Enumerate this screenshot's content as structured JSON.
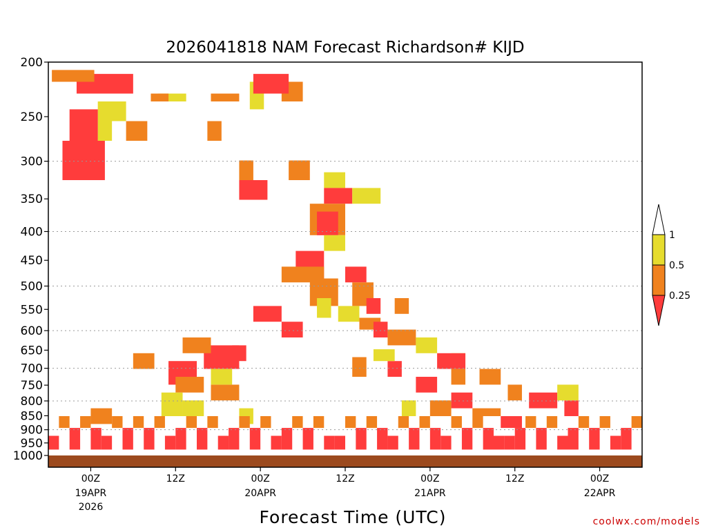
{
  "chart_data": {
    "type": "heatmap",
    "title": "2026041818 NAM Forecast Richardson# KIJD",
    "xlabel": "Forecast Time (UTC)",
    "ylabel": "",
    "y_scale": "log",
    "ylim": [
      1000,
      200
    ],
    "yticks": [
      200,
      250,
      300,
      350,
      400,
      450,
      500,
      550,
      600,
      650,
      700,
      750,
      800,
      850,
      900,
      950,
      1000
    ],
    "gridlines_at": [
      300,
      400,
      500,
      600,
      700,
      800,
      900
    ],
    "xticks": [
      {
        "hour": 6,
        "label": "00Z",
        "date": "19APR",
        "year": "2026"
      },
      {
        "hour": 18,
        "label": "12Z",
        "date": "",
        "year": ""
      },
      {
        "hour": 30,
        "label": "00Z",
        "date": "20APR",
        "year": ""
      },
      {
        "hour": 42,
        "label": "12Z",
        "date": "",
        "year": ""
      },
      {
        "hour": 54,
        "label": "00Z",
        "date": "21APR",
        "year": ""
      },
      {
        "hour": 66,
        "label": "12Z",
        "date": "",
        "year": ""
      },
      {
        "hour": 78,
        "label": "00Z",
        "date": "22APR",
        "year": ""
      }
    ],
    "xlim_hours": [
      0,
      84
    ],
    "legend": {
      "labels": [
        "1",
        "0.5",
        "0.25"
      ],
      "colors": [
        "#ffffff",
        "#e6dc2e",
        "#f0821e",
        "#ff3c3c"
      ],
      "placement": "right"
    },
    "ground_color": "#9c4a1e",
    "cells": [
      [
        0,
        17.5,
        3,
        0.02,
        0.1
      ],
      [
        1,
        15.5,
        4,
        0.08,
        0.1
      ],
      [
        1,
        7,
        2,
        0.1,
        0.2
      ],
      [
        2,
        14.5,
        2.5,
        0.08,
        0.1
      ],
      [
        2,
        11,
        3,
        0.15,
        0.2
      ],
      [
        2,
        22.5,
        2,
        0.15,
        0.2
      ],
      [
        2,
        23,
        4,
        0.08,
        0.1
      ],
      [
        1,
        28.5,
        2,
        0.05,
        0.12
      ],
      [
        2,
        33,
        3,
        0.05,
        0.1
      ],
      [
        3,
        29,
        5,
        0.03,
        0.08
      ],
      [
        3,
        4,
        8,
        0.03,
        0.08
      ],
      [
        2,
        0.5,
        6,
        0.02,
        0.05
      ],
      [
        1,
        8,
        3,
        0.1,
        0.15
      ],
      [
        3,
        3,
        4,
        0.12,
        0.25
      ],
      [
        3,
        2,
        6,
        0.2,
        0.3
      ],
      [
        2,
        27,
        2,
        0.25,
        0.3
      ],
      [
        2,
        34,
        3,
        0.25,
        0.3
      ],
      [
        3,
        27,
        4,
        0.3,
        0.35
      ],
      [
        1,
        39,
        3,
        0.28,
        0.32
      ],
      [
        3,
        39,
        4,
        0.32,
        0.36
      ],
      [
        1,
        43,
        4,
        0.32,
        0.36
      ],
      [
        2,
        37,
        5,
        0.36,
        0.44
      ],
      [
        3,
        38,
        3,
        0.38,
        0.44
      ],
      [
        1,
        39,
        3,
        0.44,
        0.48
      ],
      [
        3,
        35,
        4,
        0.48,
        0.55
      ],
      [
        2,
        33,
        6,
        0.52,
        0.56
      ],
      [
        3,
        42,
        3,
        0.52,
        0.56
      ],
      [
        2,
        37,
        4,
        0.55,
        0.62
      ],
      [
        2,
        43,
        3,
        0.56,
        0.62
      ],
      [
        1,
        38,
        2,
        0.6,
        0.65
      ],
      [
        1,
        41,
        3,
        0.62,
        0.66
      ],
      [
        3,
        29,
        4,
        0.62,
        0.66
      ],
      [
        3,
        33,
        3,
        0.66,
        0.7
      ],
      [
        2,
        44,
        3,
        0.65,
        0.68
      ],
      [
        3,
        45,
        2,
        0.6,
        0.64
      ],
      [
        2,
        49,
        2,
        0.6,
        0.64
      ],
      [
        3,
        46,
        2,
        0.66,
        0.7
      ],
      [
        2,
        48,
        4,
        0.68,
        0.72
      ],
      [
        3,
        48,
        2,
        0.76,
        0.8
      ],
      [
        3,
        26,
        2,
        0.72,
        0.76
      ],
      [
        3,
        22,
        5,
        0.72,
        0.78
      ],
      [
        3,
        17,
        4,
        0.76,
        0.82
      ],
      [
        2,
        18,
        4,
        0.8,
        0.84
      ],
      [
        2,
        23,
        4,
        0.82,
        0.86
      ],
      [
        1,
        16,
        3,
        0.84,
        0.9
      ],
      [
        2,
        19,
        4,
        0.7,
        0.74
      ],
      [
        2,
        12,
        3,
        0.74,
        0.78
      ],
      [
        1,
        23,
        3,
        0.78,
        0.82
      ],
      [
        1,
        52,
        3,
        0.7,
        0.74
      ],
      [
        1,
        57,
        2,
        0.74,
        0.78
      ],
      [
        3,
        55,
        4,
        0.74,
        0.78
      ],
      [
        2,
        57,
        2,
        0.78,
        0.82
      ],
      [
        2,
        43,
        2,
        0.75,
        0.8
      ],
      [
        1,
        46,
        3,
        0.73,
        0.76
      ],
      [
        3,
        52,
        3,
        0.8,
        0.84
      ],
      [
        3,
        57,
        3,
        0.84,
        0.88
      ],
      [
        2,
        60,
        4,
        0.88,
        0.9
      ],
      [
        1,
        27,
        2,
        0.88,
        0.92
      ],
      [
        1,
        19,
        3,
        0.86,
        0.9
      ],
      [
        2,
        6,
        3,
        0.88,
        0.92
      ],
      [
        3,
        64,
        3,
        0.9,
        0.93
      ],
      [
        3,
        73,
        2,
        0.86,
        0.9
      ],
      [
        3,
        68,
        4,
        0.84,
        0.88
      ],
      [
        2,
        65,
        2,
        0.82,
        0.86
      ],
      [
        1,
        72,
        3,
        0.82,
        0.86
      ],
      [
        2,
        61,
        3,
        0.78,
        0.82
      ],
      [
        1,
        50,
        2,
        0.86,
        0.9
      ],
      [
        2,
        54,
        3,
        0.86,
        0.9
      ]
    ]
  }
}
